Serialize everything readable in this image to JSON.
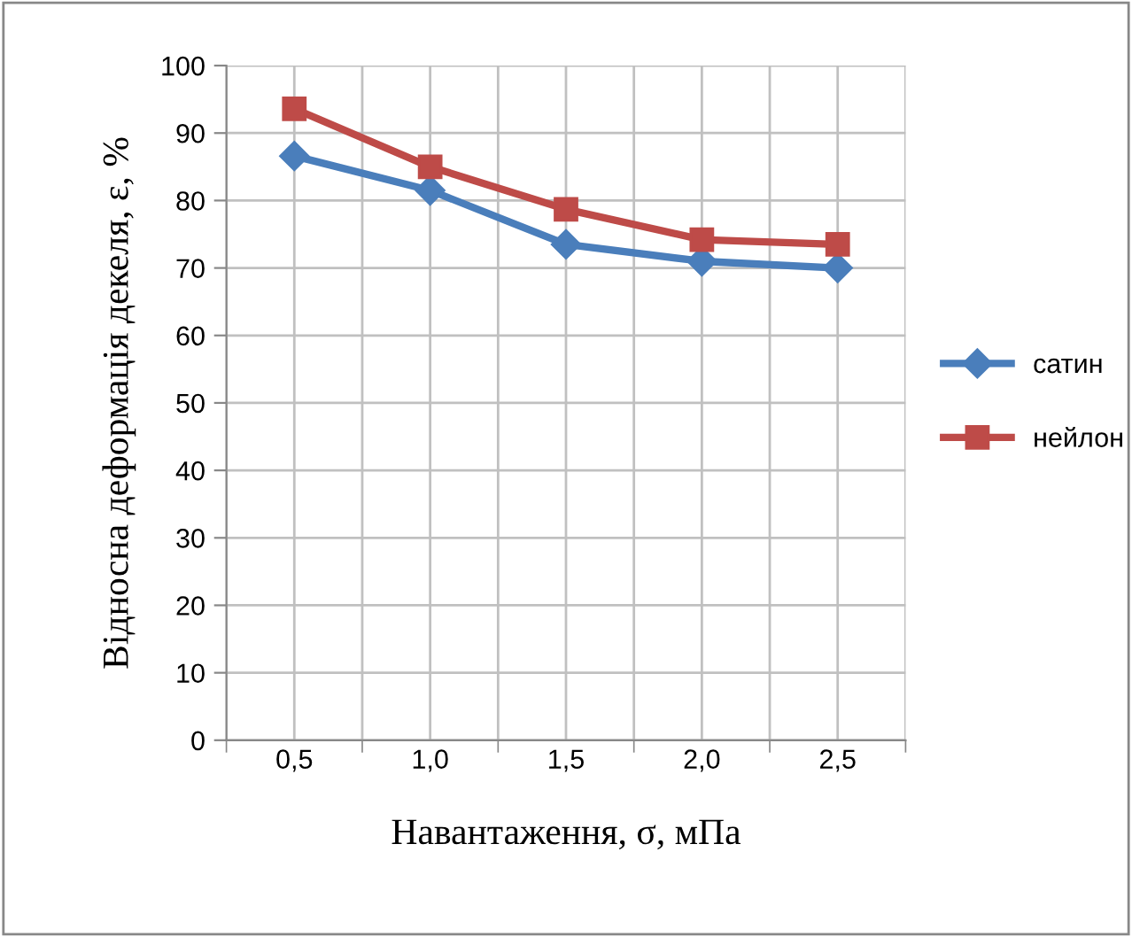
{
  "chart_data": {
    "type": "line",
    "xlabel": "Навантаження, σ, мПа",
    "ylabel": "Відносна деформація декеля, ε, %",
    "categories": [
      "0,5",
      "1,0",
      "1,5",
      "2,0",
      "2,5"
    ],
    "series": [
      {
        "name": "сатин",
        "color": "#4a7ebb",
        "marker": "diamond",
        "values": [
          86.6,
          81.5,
          73.5,
          71,
          70
        ]
      },
      {
        "name": "нейлон",
        "color": "#be4b48",
        "marker": "square",
        "values": [
          93.6,
          85,
          78.7,
          74.2,
          73.5
        ]
      }
    ],
    "ylim": [
      0,
      100
    ],
    "yticks": [
      0,
      10,
      20,
      30,
      40,
      50,
      60,
      70,
      80,
      90,
      100
    ],
    "grid": true,
    "legend": "right",
    "line_style": "solid"
  }
}
